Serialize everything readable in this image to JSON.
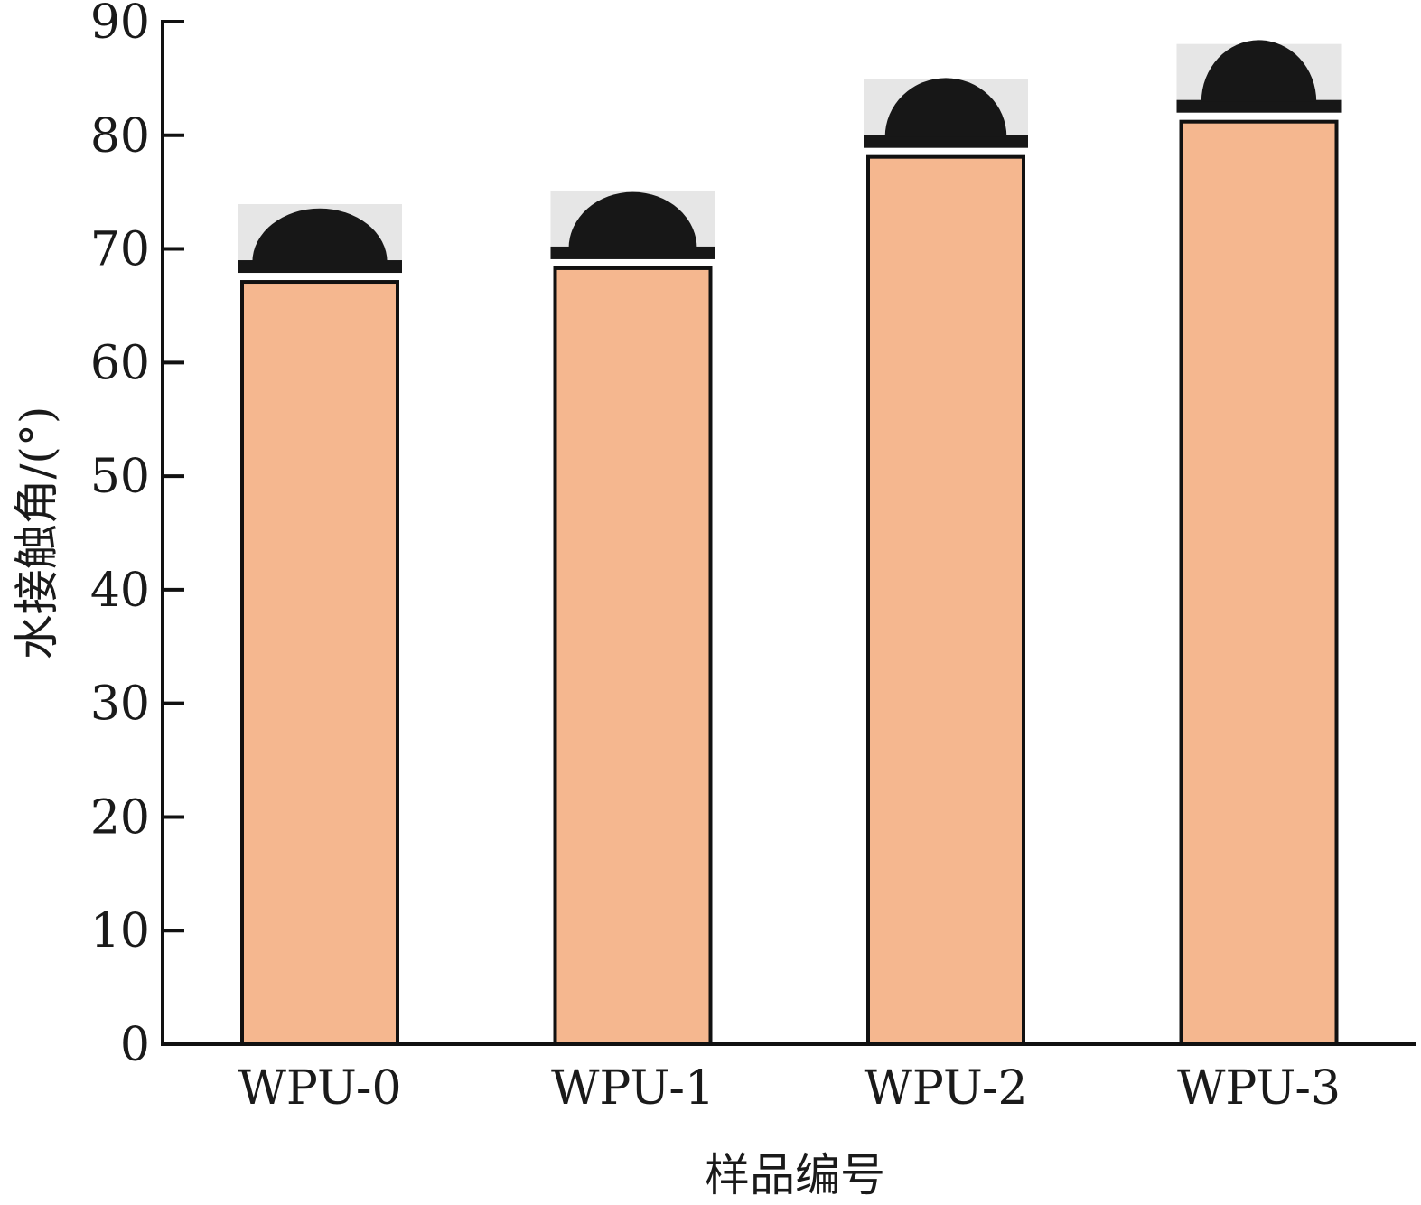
{
  "chart_data": {
    "type": "bar",
    "categories": [
      "WPU-0",
      "WPU-1",
      "WPU-2",
      "WPU-3"
    ],
    "values": [
      67.1,
      68.3,
      78.1,
      81.2
    ],
    "title": "",
    "xlabel": "样品编号",
    "ylabel": "水接触角/(°)",
    "ylim": [
      0,
      90
    ],
    "yticks": [
      0,
      10,
      20,
      30,
      40,
      50,
      60,
      70,
      80,
      90
    ],
    "grid": false,
    "legend": "none",
    "colors": {
      "bar_fill": "#F5B78F",
      "bar_stroke": "#111111",
      "axis": "#111111",
      "droplet": "#171717",
      "droplet_background": "#e6e6e6"
    },
    "annotations": [
      {
        "type": "image",
        "icon": "water-droplet-photo",
        "category": "WPU-0"
      },
      {
        "type": "image",
        "icon": "water-droplet-photo",
        "category": "WPU-1"
      },
      {
        "type": "image",
        "icon": "water-droplet-photo",
        "category": "WPU-2"
      },
      {
        "type": "image",
        "icon": "water-droplet-photo",
        "category": "WPU-3"
      }
    ]
  }
}
